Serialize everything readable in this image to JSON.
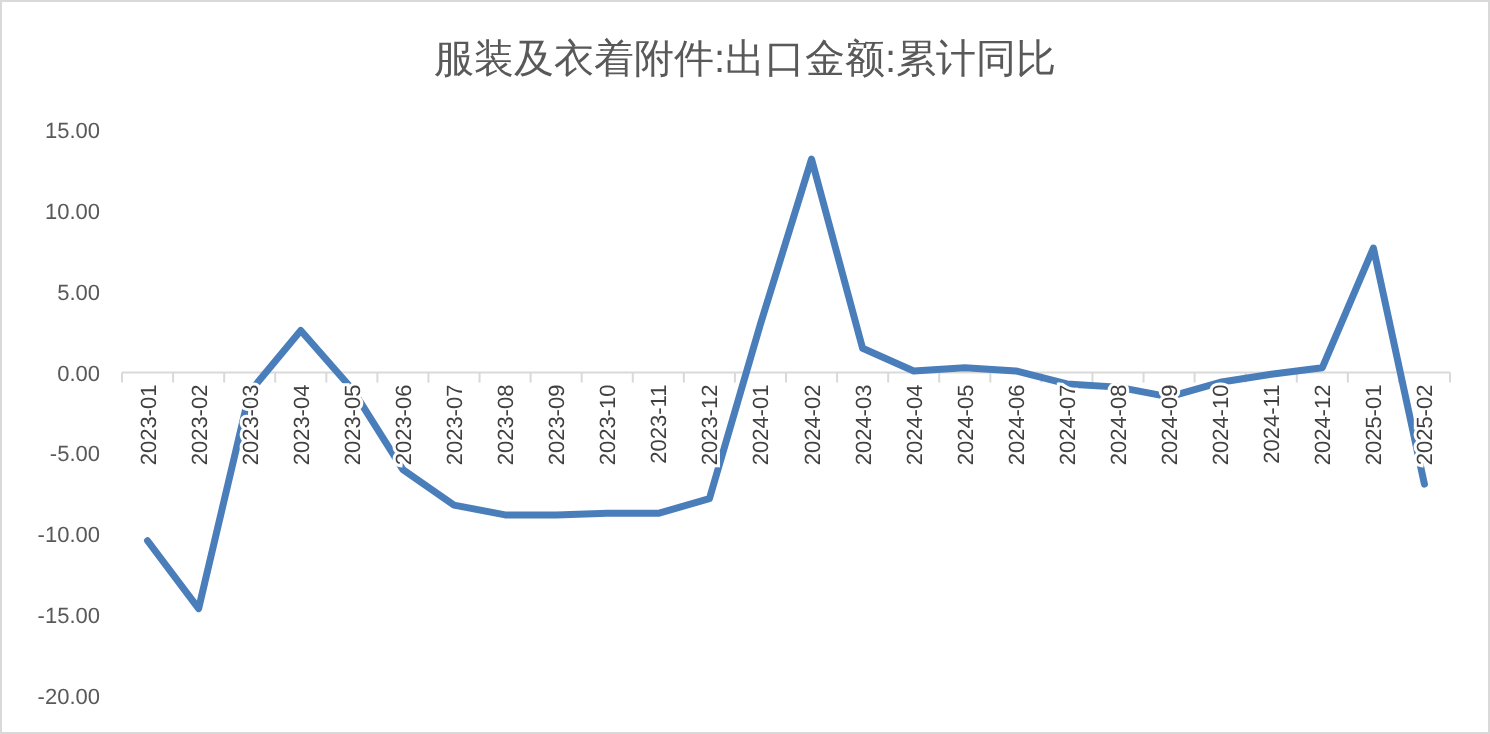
{
  "chart_data": {
    "type": "line",
    "title": "服装及衣着附件:出口金额:累计同比",
    "categories": [
      "2023-01",
      "2023-02",
      "2023-03",
      "2023-04",
      "2023-05",
      "2023-06",
      "2023-07",
      "2023-08",
      "2023-09",
      "2023-10",
      "2023-11",
      "2023-12",
      "2024-01",
      "2024-02",
      "2024-03",
      "2024-04",
      "2024-05",
      "2024-06",
      "2024-07",
      "2024-08",
      "2024-09",
      "2024-10",
      "2024-11",
      "2024-12",
      "2025-01",
      "2025-02"
    ],
    "series": [
      {
        "color": "#4a7ebb",
        "values": [
          -10.4,
          -14.6,
          -1.2,
          2.6,
          -1.0,
          -6.0,
          -8.2,
          -8.8,
          -8.8,
          -8.7,
          -8.7,
          -7.8,
          3.0,
          13.2,
          1.5,
          0.1,
          0.3,
          0.1,
          -0.7,
          -0.9,
          -1.5,
          -0.6,
          -0.1,
          0.3,
          7.7,
          -6.9
        ]
      }
    ],
    "ylim": [
      -20,
      15
    ],
    "yticks": [
      {
        "value": -20,
        "label": "-20.00"
      },
      {
        "value": -15,
        "label": "-15.00"
      },
      {
        "value": -10,
        "label": "-10.00"
      },
      {
        "value": -5,
        "label": "-5.00"
      },
      {
        "value": 0,
        "label": "0.00"
      },
      {
        "value": 5,
        "label": "5.00"
      },
      {
        "value": 10,
        "label": "10.00"
      },
      {
        "value": 15,
        "label": "15.00"
      }
    ],
    "grid": false,
    "marker": "none",
    "line_style": "solid"
  }
}
